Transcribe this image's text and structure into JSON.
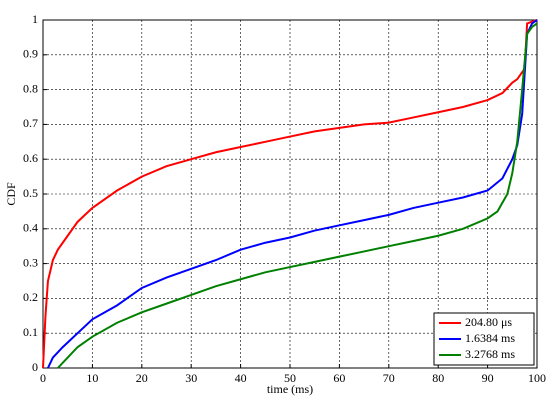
{
  "chart_data": {
    "type": "line",
    "xlabel": "time (ms)",
    "ylabel": "CDF",
    "xlim": [
      0,
      100
    ],
    "ylim": [
      0,
      1
    ],
    "xticks": [
      0,
      10,
      20,
      30,
      40,
      50,
      60,
      70,
      80,
      90,
      100
    ],
    "yticks": [
      0,
      0.1,
      0.2,
      0.3,
      0.4,
      0.5,
      0.6,
      0.7,
      0.8,
      0.9,
      1
    ],
    "grid": true,
    "legend": "lower right",
    "series": [
      {
        "name": "204.80 μs",
        "color": "#ff0000",
        "x": [
          0,
          0.5,
          1,
          2,
          3,
          5,
          7,
          10,
          15,
          20,
          25,
          30,
          35,
          40,
          45,
          50,
          55,
          60,
          65,
          70,
          75,
          80,
          85,
          90,
          93,
          95,
          96,
          97,
          97.5,
          98,
          100
        ],
        "values": [
          0,
          0.15,
          0.25,
          0.31,
          0.34,
          0.38,
          0.42,
          0.46,
          0.51,
          0.55,
          0.58,
          0.6,
          0.62,
          0.635,
          0.65,
          0.665,
          0.68,
          0.69,
          0.7,
          0.705,
          0.72,
          0.735,
          0.75,
          0.77,
          0.79,
          0.82,
          0.83,
          0.85,
          0.86,
          0.99,
          1
        ]
      },
      {
        "name": "1.6384 ms",
        "color": "#0000ff",
        "x": [
          1,
          2,
          4,
          7,
          10,
          15,
          20,
          25,
          30,
          35,
          40,
          45,
          50,
          55,
          60,
          65,
          70,
          75,
          80,
          85,
          90,
          93,
          95,
          96,
          97,
          98,
          99,
          100
        ],
        "values": [
          0,
          0.03,
          0.06,
          0.1,
          0.14,
          0.18,
          0.23,
          0.26,
          0.285,
          0.31,
          0.34,
          0.36,
          0.375,
          0.395,
          0.41,
          0.425,
          0.44,
          0.46,
          0.475,
          0.49,
          0.51,
          0.545,
          0.6,
          0.64,
          0.73,
          0.96,
          0.99,
          1
        ]
      },
      {
        "name": "3.2768 ms",
        "color": "#008000",
        "x": [
          3,
          5,
          7,
          10,
          15,
          20,
          25,
          30,
          35,
          40,
          45,
          50,
          55,
          60,
          65,
          70,
          75,
          80,
          85,
          90,
          92,
          94,
          95,
          96,
          97,
          98,
          99,
          100
        ],
        "values": [
          0,
          0.03,
          0.06,
          0.09,
          0.13,
          0.16,
          0.185,
          0.21,
          0.235,
          0.255,
          0.275,
          0.29,
          0.305,
          0.32,
          0.335,
          0.35,
          0.365,
          0.38,
          0.4,
          0.43,
          0.45,
          0.5,
          0.56,
          0.65,
          0.8,
          0.96,
          0.98,
          0.99
        ]
      }
    ]
  }
}
